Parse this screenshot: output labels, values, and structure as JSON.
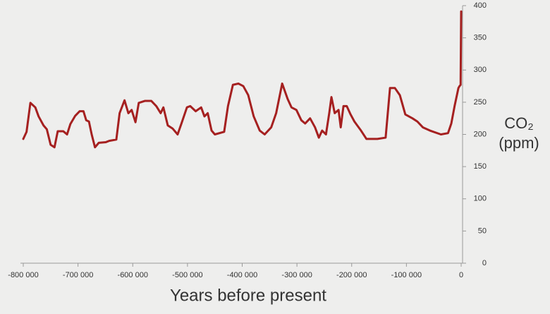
{
  "chart_data": {
    "type": "line",
    "xlabel": "Years before present",
    "ylabel_lines": [
      "CO₂",
      "(ppm)"
    ],
    "xlim": [
      -800000,
      0
    ],
    "ylim": [
      0,
      400
    ],
    "xticks": [
      {
        "value": -800000,
        "label": "-800 000"
      },
      {
        "value": -700000,
        "label": "-700 000"
      },
      {
        "value": -600000,
        "label": "-600 000"
      },
      {
        "value": -500000,
        "label": "-500 000"
      },
      {
        "value": -400000,
        "label": "-400 000"
      },
      {
        "value": -300000,
        "label": "-300 000"
      },
      {
        "value": -200000,
        "label": "-200 000"
      },
      {
        "value": -100000,
        "label": "-100 000"
      },
      0
    ],
    "yticks": [
      0,
      50,
      100,
      150,
      200,
      250,
      300,
      350,
      400
    ],
    "yaxis_side": "right",
    "grid": false,
    "series": [
      {
        "color": "#a52020",
        "x": [
          -800000,
          -794000,
          -787000,
          -778000,
          -772000,
          -763000,
          -757000,
          -750000,
          -743000,
          -737000,
          -727000,
          -720000,
          -714000,
          -705000,
          -697000,
          -690000,
          -685000,
          -680000,
          -675000,
          -669000,
          -662000,
          -649000,
          -643000,
          -630000,
          -624000,
          -615000,
          -608000,
          -602000,
          -595000,
          -589000,
          -578000,
          -566000,
          -557000,
          -549000,
          -544000,
          -536000,
          -527000,
          -518000,
          -511000,
          -501000,
          -495000,
          -485000,
          -475000,
          -469000,
          -463000,
          -456000,
          -450000,
          -433000,
          -426000,
          -417000,
          -407000,
          -398000,
          -389000,
          -379000,
          -368000,
          -359000,
          -347000,
          -338000,
          -327000,
          -317000,
          -310000,
          -301000,
          -292000,
          -285000,
          -276000,
          -267000,
          -260000,
          -254000,
          -247000,
          -241000,
          -237000,
          -231000,
          -224000,
          -220000,
          -215000,
          -209000,
          -202000,
          -195000,
          -183000,
          -173000,
          -153000,
          -138000,
          -130000,
          -121000,
          -112000,
          -102000,
          -89000,
          -80000,
          -70000,
          -57000,
          -37000,
          -24000,
          -18000,
          -12000,
          -5000,
          -3000,
          -1000,
          0
        ],
        "values": [
          193,
          204,
          249,
          242,
          228,
          214,
          208,
          184,
          180,
          205,
          205,
          200,
          216,
          229,
          236,
          236,
          222,
          220,
          200,
          180,
          187,
          188,
          190,
          192,
          233,
          253,
          233,
          238,
          219,
          249,
          252,
          252,
          244,
          233,
          242,
          214,
          209,
          200,
          217,
          242,
          244,
          236,
          242,
          228,
          233,
          206,
          200,
          204,
          244,
          277,
          279,
          275,
          261,
          228,
          206,
          200,
          211,
          233,
          279,
          255,
          242,
          238,
          222,
          217,
          225,
          211,
          195,
          206,
          200,
          233,
          258,
          233,
          238,
          211,
          244,
          244,
          231,
          220,
          206,
          193,
          193,
          195,
          272,
          272,
          261,
          231,
          225,
          220,
          211,
          206,
          200,
          202,
          217,
          244,
          272,
          275,
          277,
          391
        ]
      }
    ]
  }
}
